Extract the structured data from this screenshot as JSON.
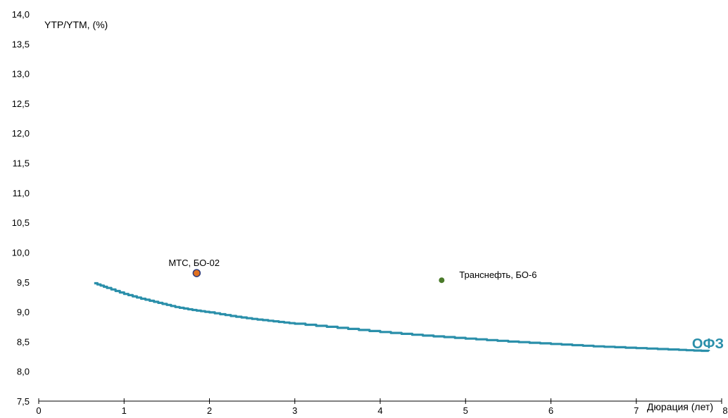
{
  "chart_data": {
    "type": "scatter",
    "title": "",
    "ylabel": "YTP/YTM, (%)",
    "xlabel": "Дюрация (лет)",
    "xlim": [
      0,
      8
    ],
    "ylim": [
      7.5,
      14.0
    ],
    "x_ticks": [
      "0",
      "1",
      "2",
      "3",
      "4",
      "5",
      "6",
      "7",
      "8"
    ],
    "y_ticks": [
      "7,5",
      "8,0",
      "8,5",
      "9,0",
      "9,5",
      "10,0",
      "10,5",
      "11,0",
      "11,5",
      "12,0",
      "12,5",
      "13,0",
      "13,5",
      "14,0"
    ],
    "grid": false,
    "curve": {
      "name": "ОФЗ",
      "color": "#2a8faa",
      "x": [
        0.65,
        0.8,
        1.0,
        1.2,
        1.4,
        1.6,
        1.8,
        2.0,
        2.25,
        2.5,
        2.75,
        3.0,
        3.5,
        4.0,
        4.5,
        5.0,
        5.5,
        6.0,
        6.5,
        7.0,
        7.5,
        7.85
      ],
      "y": [
        9.48,
        9.4,
        9.3,
        9.22,
        9.15,
        9.08,
        9.03,
        8.99,
        8.93,
        8.88,
        8.84,
        8.8,
        8.73,
        8.66,
        8.6,
        8.55,
        8.5,
        8.46,
        8.42,
        8.39,
        8.36,
        8.34
      ]
    },
    "points": [
      {
        "label": "МТС, БО-02",
        "x": 1.85,
        "y": 9.65,
        "color": "#e07020",
        "stroke": "#2e3a7a"
      },
      {
        "label": "Транснефть, БО-6",
        "x": 4.72,
        "y": 9.53,
        "color": "#4a7a2a",
        "stroke": "#4a7a2a"
      }
    ],
    "hidden_tick_note": "7"
  }
}
